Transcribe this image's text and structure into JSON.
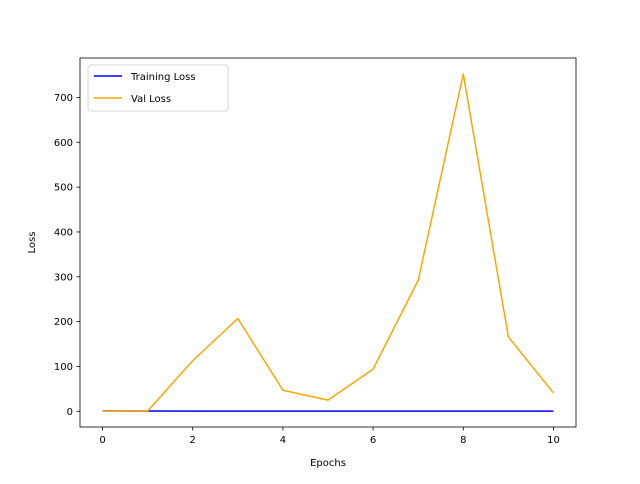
{
  "chart_data": {
    "type": "line",
    "title": "",
    "xlabel": "Epochs",
    "ylabel": "Loss",
    "x": [
      0,
      1,
      2,
      3,
      4,
      5,
      6,
      7,
      8,
      9,
      10
    ],
    "xlim": [
      -0.5,
      10.5
    ],
    "ylim": [
      -35,
      788
    ],
    "xticks": [
      0,
      2,
      4,
      6,
      8,
      10
    ],
    "yticks": [
      0,
      100,
      200,
      300,
      400,
      500,
      600,
      700
    ],
    "grid": false,
    "legend_position": "top-left",
    "series": [
      {
        "name": "Training Loss",
        "color": "#0000ff",
        "values": [
          0.9,
          0.6,
          0.5,
          0.5,
          0.4,
          0.4,
          0.4,
          0.4,
          0.4,
          0.4,
          0.4
        ]
      },
      {
        "name": "Val Loss",
        "color": "#ffa500",
        "values": [
          0.7,
          0.8,
          113,
          207,
          47,
          25,
          94,
          292,
          752,
          166,
          41
        ]
      }
    ]
  }
}
